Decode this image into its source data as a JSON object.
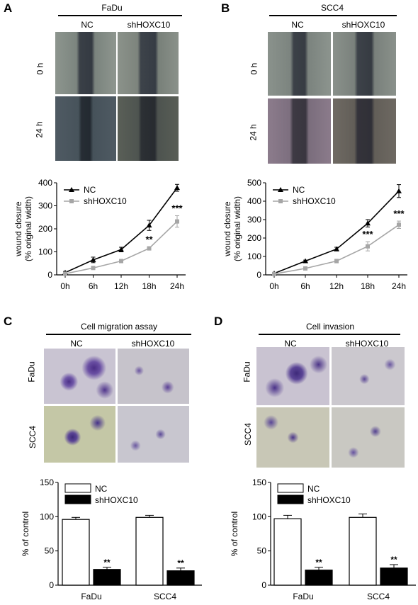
{
  "panelA": {
    "letter": "A",
    "cell_line": "FaDu",
    "col_labels": [
      "NC",
      "shHOXC10"
    ],
    "row_labels": [
      "0 h",
      "24 h"
    ]
  },
  "panelB": {
    "letter": "B",
    "cell_line": "SCC4",
    "col_labels": [
      "NC",
      "shHOXC10"
    ],
    "row_labels": [
      "0 h",
      "24 h"
    ]
  },
  "panelC": {
    "letter": "C",
    "assay_title": "Cell migration assay",
    "col_labels": [
      "NC",
      "shHOXC10"
    ],
    "row_labels": [
      "FaDu",
      "SCC4"
    ]
  },
  "panelD": {
    "letter": "D",
    "assay_title": "Cell invasion",
    "col_labels": [
      "NC",
      "shHOXC10"
    ],
    "row_labels": [
      "FaDu",
      "SCC4"
    ]
  },
  "colors": {
    "nc_line": "#000000",
    "sh_line": "#a6a6a6",
    "nc_bar": "#ffffff",
    "sh_bar": "#000000"
  },
  "chart_data": [
    {
      "id": "A-line",
      "type": "line",
      "x": [
        "0h",
        "6h",
        "12h",
        "18h",
        "24h"
      ],
      "ylabel": "wound closure\n(% original width)",
      "ylim": [
        0,
        400
      ],
      "yticks": [
        0,
        100,
        200,
        300,
        400
      ],
      "series": [
        {
          "name": "NC",
          "values": [
            10,
            65,
            110,
            215,
            378
          ],
          "errors": [
            5,
            12,
            10,
            22,
            15
          ]
        },
        {
          "name": "shHOXC10",
          "values": [
            5,
            30,
            60,
            115,
            232
          ],
          "errors": [
            3,
            5,
            5,
            7,
            25
          ]
        }
      ],
      "annotations": [
        {
          "x": "18h",
          "text": "**"
        },
        {
          "x": "24h",
          "text": "***"
        }
      ],
      "legend": "top-left"
    },
    {
      "id": "B-line",
      "type": "line",
      "x": [
        "0h",
        "6h",
        "12h",
        "18h",
        "24h"
      ],
      "ylabel": "wound closure\n(% original width)",
      "ylim": [
        0,
        500
      ],
      "yticks": [
        0,
        100,
        200,
        300,
        400,
        500
      ],
      "series": [
        {
          "name": "NC",
          "values": [
            8,
            75,
            140,
            280,
            455
          ],
          "errors": [
            4,
            5,
            10,
            20,
            35
          ]
        },
        {
          "name": "shHOXC10",
          "values": [
            5,
            35,
            75,
            155,
            272
          ],
          "errors": [
            3,
            5,
            10,
            25,
            20
          ]
        }
      ],
      "annotations": [
        {
          "x": "18h",
          "text": "***"
        },
        {
          "x": "24h",
          "text": "***"
        }
      ],
      "legend": "top-left"
    },
    {
      "id": "C-bar",
      "type": "bar",
      "categories": [
        "FaDu",
        "SCC4"
      ],
      "ylabel": "% of control",
      "ylim": [
        0,
        150
      ],
      "yticks": [
        0,
        50,
        100,
        150
      ],
      "series": [
        {
          "name": "NC",
          "values": [
            96,
            99
          ],
          "errors": [
            3,
            3
          ]
        },
        {
          "name": "shHOXC10",
          "values": [
            23,
            21
          ],
          "errors": [
            3,
            4
          ]
        }
      ],
      "annotations": [
        {
          "category": "FaDu",
          "text": "**"
        },
        {
          "category": "SCC4",
          "text": "**"
        }
      ],
      "legend": "top-left"
    },
    {
      "id": "D-bar",
      "type": "bar",
      "categories": [
        "FaDu",
        "SCC4"
      ],
      "ylabel": "% of control",
      "ylim": [
        0,
        150
      ],
      "yticks": [
        0,
        50,
        100,
        150
      ],
      "series": [
        {
          "name": "NC",
          "values": [
            97,
            99
          ],
          "errors": [
            5,
            5
          ]
        },
        {
          "name": "shHOXC10",
          "values": [
            22,
            25
          ],
          "errors": [
            4,
            5
          ]
        }
      ],
      "annotations": [
        {
          "category": "FaDu",
          "text": "**"
        },
        {
          "category": "SCC4",
          "text": "**"
        }
      ],
      "legend": "top-left"
    }
  ]
}
